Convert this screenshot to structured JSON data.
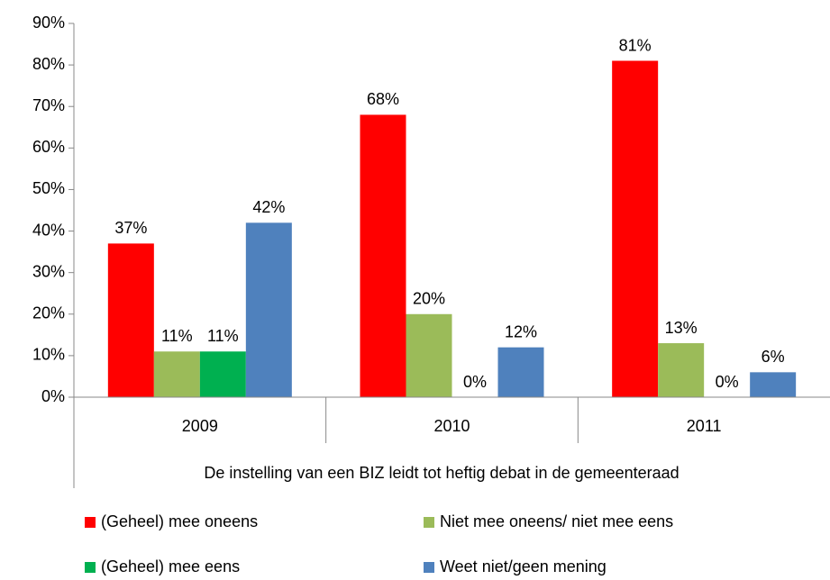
{
  "chart_data": {
    "type": "bar",
    "categories": [
      "2009",
      "2010",
      "2011"
    ],
    "xlabel": "De instelling van een BIZ leidt tot heftig debat in de gemeenteraad",
    "series": [
      {
        "name": "(Geheel) mee oneens",
        "color": "#ff0000",
        "values": [
          37,
          68,
          81
        ],
        "value_labels": [
          "37%",
          "68%",
          "81%"
        ]
      },
      {
        "name": "Niet mee oneens/ niet mee eens",
        "color": "#9bbb59",
        "values": [
          11,
          20,
          13
        ],
        "value_labels": [
          "11%",
          "20%",
          "13%"
        ]
      },
      {
        "name": "(Geheel) mee eens",
        "color": "#00b050",
        "values": [
          11,
          0,
          0
        ],
        "value_labels": [
          "11%",
          "0%",
          "0%"
        ]
      },
      {
        "name": "Weet niet/geen mening",
        "color": "#4f81bd",
        "values": [
          42,
          12,
          6
        ],
        "value_labels": [
          "42%",
          "12%",
          "6%"
        ]
      }
    ],
    "ylim": [
      0,
      90
    ],
    "yticks": [
      {
        "value": 0,
        "label": "0%"
      },
      {
        "value": 10,
        "label": "10%"
      },
      {
        "value": 20,
        "label": "20%"
      },
      {
        "value": 30,
        "label": "30%"
      },
      {
        "value": 40,
        "label": "40%"
      },
      {
        "value": 50,
        "label": "50%"
      },
      {
        "value": 60,
        "label": "60%"
      },
      {
        "value": 70,
        "label": "70%"
      },
      {
        "value": 80,
        "label": "80%"
      },
      {
        "value": 90,
        "label": "90%"
      }
    ],
    "grid": false
  }
}
